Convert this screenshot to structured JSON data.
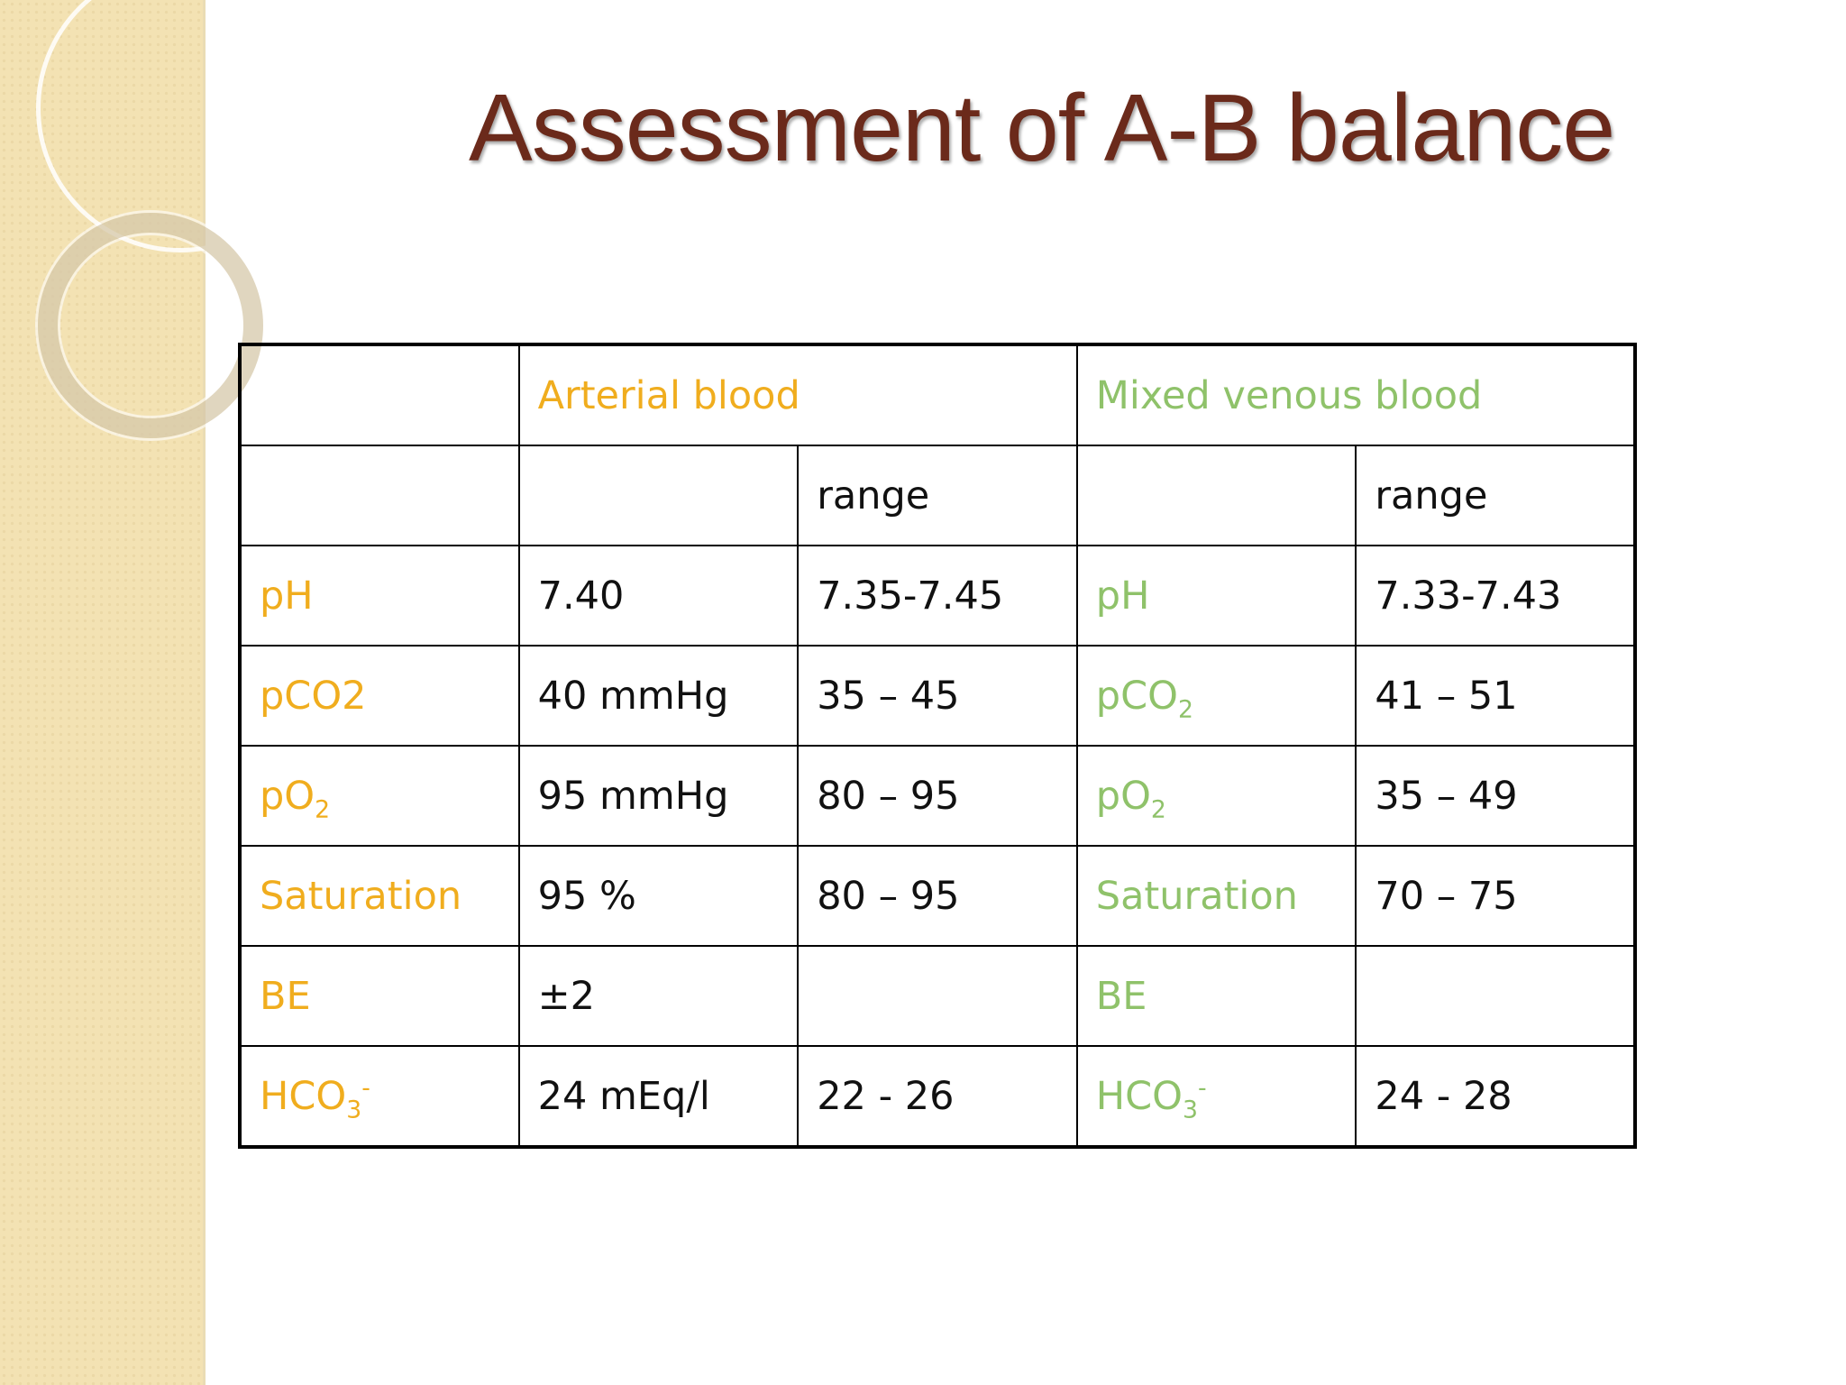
{
  "title": "Assessment of A-B balance",
  "colors": {
    "title": "#6b2a1b",
    "arterial_labels": "#f0ad1e",
    "venous_labels": "#8fc26a",
    "side_band": "#f3e2b3"
  },
  "table": {
    "header": {
      "arterial": "Arterial blood",
      "venous": "Mixed venous blood"
    },
    "subheader": {
      "arterial_range": "range",
      "venous_range": "range"
    },
    "rows": [
      {
        "arterial_param": "pH",
        "arterial_value": "7.40",
        "arterial_range": "7.35-7.45",
        "venous_param": "pH",
        "venous_range": "7.33-7.43"
      },
      {
        "arterial_param": "pCO2",
        "arterial_value": "40 mmHg",
        "arterial_range": "35 – 45",
        "venous_param_base": "pCO",
        "venous_param_sub": "2",
        "venous_range": "41 – 51"
      },
      {
        "arterial_param_base": "pO",
        "arterial_param_sub": "2",
        "arterial_value": "95 mmHg",
        "arterial_range": "80 – 95",
        "venous_param_base": "pO",
        "venous_param_sub": "2",
        "venous_range": "35 – 49"
      },
      {
        "arterial_param": "Saturation",
        "arterial_value": "95 %",
        "arterial_range": "80 – 95",
        "venous_param": "Saturation",
        "venous_range": "70 – 75"
      },
      {
        "arterial_param": "BE",
        "arterial_value": "±2",
        "arterial_range": "",
        "venous_param": "BE",
        "venous_range": ""
      },
      {
        "arterial_param_base": "HCO",
        "arterial_param_sub": "3",
        "arterial_param_sup": "-",
        "arterial_value": "24 mEq/l",
        "arterial_range": "22 - 26",
        "venous_param_base": "HCO",
        "venous_param_sub": "3",
        "venous_param_sup": "-",
        "venous_range": "24 - 28"
      }
    ]
  }
}
